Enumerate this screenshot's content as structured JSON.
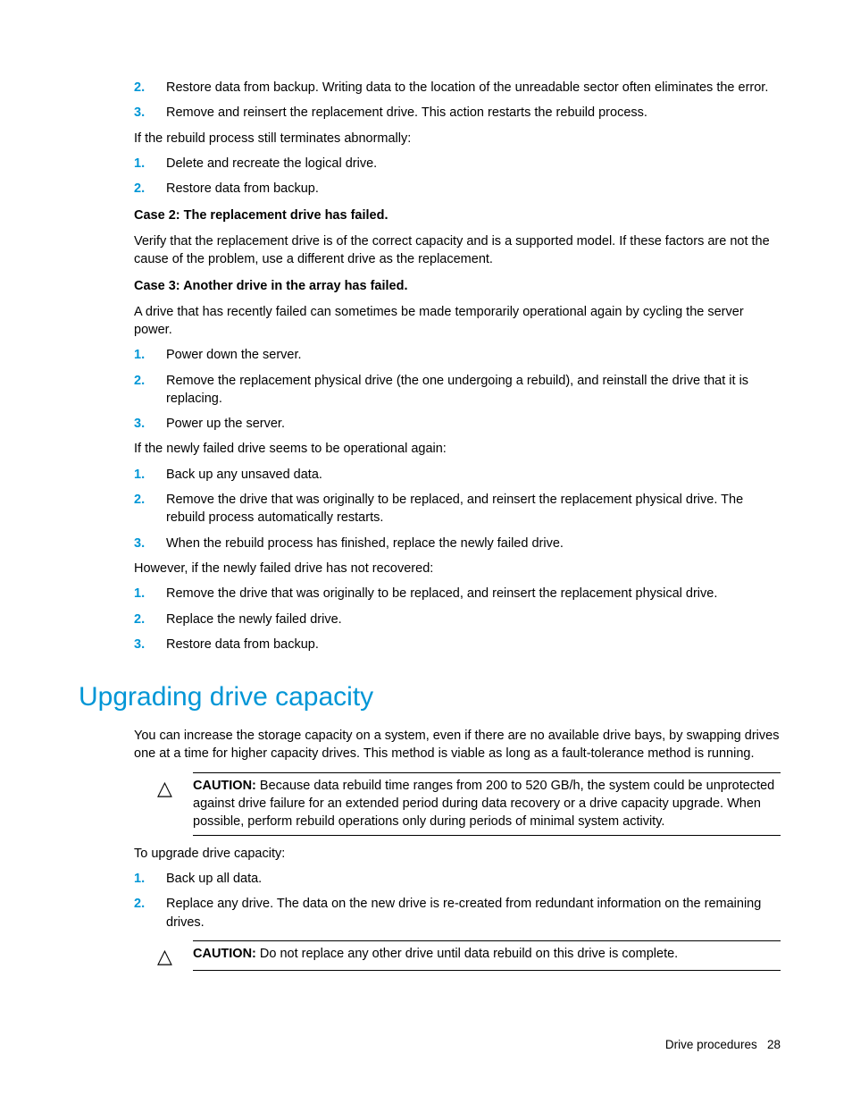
{
  "colors": {
    "accent": "#0096d6",
    "text": "#000000",
    "background": "#ffffff",
    "rule": "#000000"
  },
  "typography": {
    "body_font_family": "Arial, Helvetica, sans-serif",
    "body_size_pt": 11,
    "heading_size_pt": 22,
    "heading_weight": "normal",
    "list_number_weight": "bold",
    "list_number_color": "#0096d6"
  },
  "topList": [
    {
      "n": "2.",
      "t": "Restore data from backup. Writing data to the location of the unreadable sector often eliminates the error."
    },
    {
      "n": "3.",
      "t": "Remove and reinsert the replacement drive. This action restarts the rebuild process."
    }
  ],
  "para1": "If the rebuild process still terminates abnormally:",
  "list2": [
    {
      "n": "1.",
      "t": "Delete and recreate the logical drive."
    },
    {
      "n": "2.",
      "t": "Restore data from backup."
    }
  ],
  "case2_title": "Case 2: The replacement drive has failed.",
  "case2_body": "Verify that the replacement drive is of the correct capacity and is a supported model. If these factors are not the cause of the problem, use a different drive as the replacement.",
  "case3_title": "Case 3: Another drive in the array has failed.",
  "case3_body": "A drive that has recently failed can sometimes be made temporarily operational again by cycling the server power.",
  "list3": [
    {
      "n": "1.",
      "t": "Power down the server."
    },
    {
      "n": "2.",
      "t": "Remove the replacement physical drive (the one undergoing a rebuild), and reinstall the drive that it is replacing."
    },
    {
      "n": "3.",
      "t": "Power up the server."
    }
  ],
  "para_op": "If the newly failed drive seems to be operational again:",
  "list4": [
    {
      "n": "1.",
      "t": "Back up any unsaved data."
    },
    {
      "n": "2.",
      "t": "Remove the drive that was originally to be replaced, and reinsert the replacement physical drive. The rebuild process automatically restarts."
    },
    {
      "n": "3.",
      "t": "When the rebuild process has finished, replace the newly failed drive."
    }
  ],
  "para_however": "However, if the newly failed drive has not recovered:",
  "list5": [
    {
      "n": "1.",
      "t": "Remove the drive that was originally to be replaced, and reinsert the replacement physical drive."
    },
    {
      "n": "2.",
      "t": "Replace the newly failed drive."
    },
    {
      "n": "3.",
      "t": "Restore data from backup."
    }
  ],
  "heading": "Upgrading drive capacity",
  "upgrade_intro": "You can increase the storage capacity on a system, even if there are no available drive bays, by swapping drives one at a time for higher capacity drives. This method is viable as long as a fault-tolerance method is running.",
  "caution1": {
    "label": "CAUTION:",
    "text": "Because data rebuild time ranges from 200 to 520 GB/h, the system could be unprotected against drive failure for an extended period during data recovery or a drive capacity upgrade. When possible, perform rebuild operations only during periods of minimal system activity."
  },
  "para_upgrade": "To upgrade drive capacity:",
  "list6": [
    {
      "n": "1.",
      "t": "Back up all data."
    },
    {
      "n": "2.",
      "t": "Replace any drive. The data on the new drive is re-created from redundant information on the remaining drives."
    }
  ],
  "caution2": {
    "label": "CAUTION:",
    "text": "Do not replace any other drive until data rebuild on this drive is complete."
  },
  "footer": {
    "section": "Drive procedures",
    "page": "28"
  },
  "icons": {
    "caution_glyph": "△"
  }
}
